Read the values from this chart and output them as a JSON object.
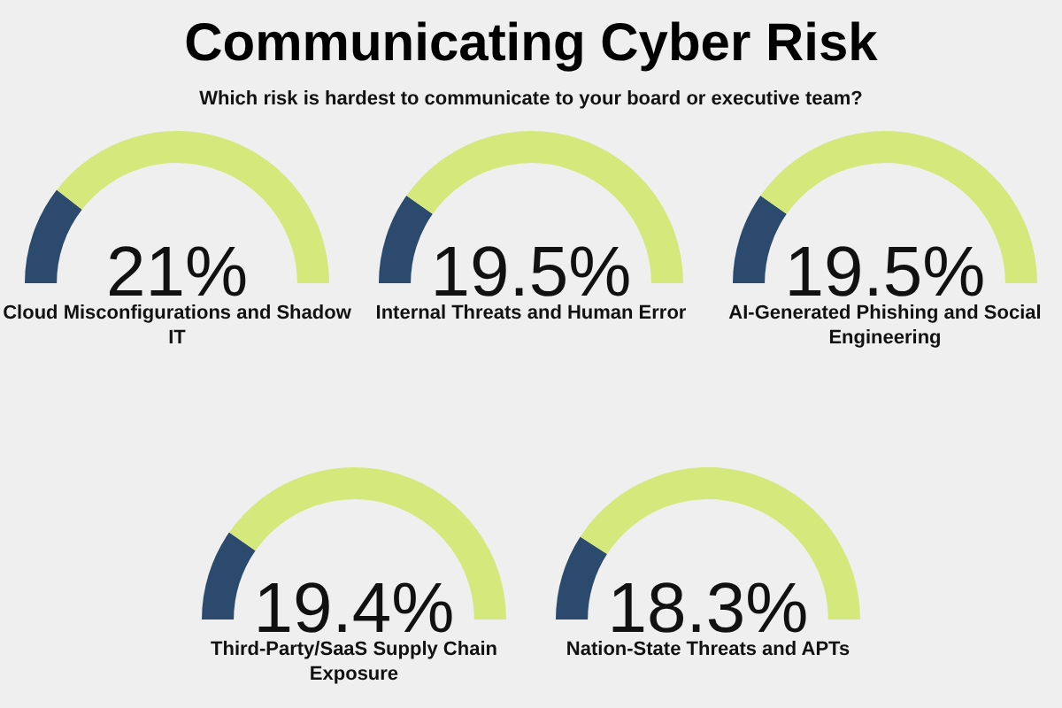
{
  "chart_data": [
    {
      "type": "other",
      "title": "Communicating Cyber Risk",
      "subtitle": "Which risk is hardest to communicate to your board or executive team?"
    },
    {
      "type": "donut",
      "title": "Cloud Misconfigurations and Shadow IT",
      "categories": [
        null,
        null
      ],
      "values": [
        21,
        79
      ],
      "colors": [
        "#2c4a6e",
        "#d5e87c"
      ],
      "annotations": [
        "21%"
      ]
    },
    {
      "type": "donut",
      "title": "Internal Threats and Human Error",
      "categories": [
        null,
        null
      ],
      "values": [
        19.5,
        80.5
      ],
      "colors": [
        "#2c4a6e",
        "#d5e87c"
      ],
      "annotations": [
        "19.5%"
      ]
    },
    {
      "type": "donut",
      "title": "AI-Generated Phishing and Social Engineering",
      "categories": [
        null,
        null
      ],
      "values": [
        19.5,
        80.5
      ],
      "colors": [
        "#2c4a6e",
        "#d5e87c"
      ],
      "annotations": [
        "19.5%"
      ]
    },
    {
      "type": "donut",
      "title": "Third-Party/SaaS Supply Chain Exposure",
      "categories": [
        null,
        null
      ],
      "values": [
        19.4,
        80.6
      ],
      "colors": [
        "#2c4a6e",
        "#d5e87c"
      ],
      "annotations": [
        "19.4%"
      ]
    },
    {
      "type": "donut",
      "title": "Nation-State Threats and APTs",
      "categories": [
        null,
        null
      ],
      "values": [
        18.3,
        81.7
      ],
      "colors": [
        "#2c4a6e",
        "#d5e87c"
      ],
      "annotations": [
        "18.3%"
      ]
    }
  ]
}
